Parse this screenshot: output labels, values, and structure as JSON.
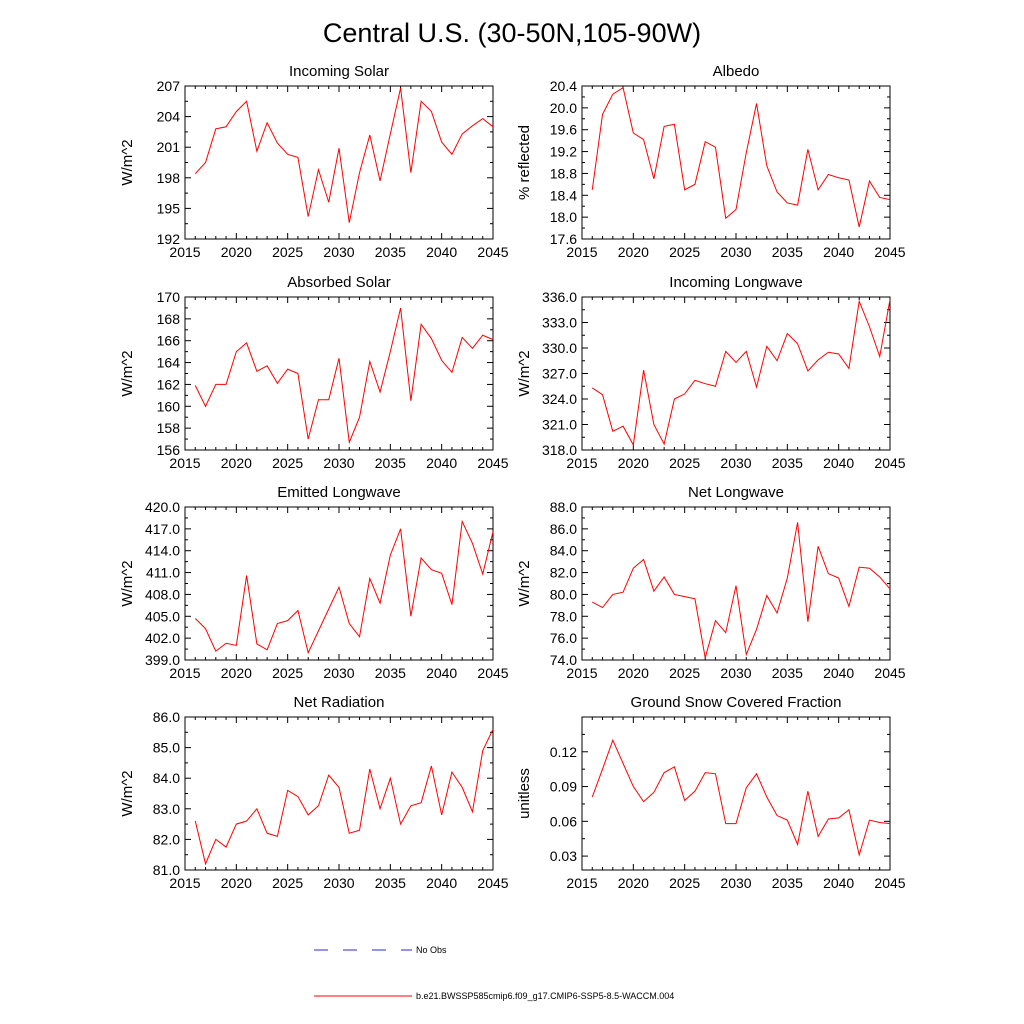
{
  "figure_title": "Central U.S. (30-50N,105-90W)",
  "legend": [
    {
      "label": "No Obs",
      "color": "#2a2ad0",
      "style": "dashed"
    },
    {
      "label": "b.e21.BWSSP585cmip6.f09_g17.CMIP6-SSP5-8.5-WACCM.004",
      "color": "#ff0000",
      "style": "solid"
    }
  ],
  "chart_data": [
    {
      "type": "line",
      "title": "Incoming Solar",
      "xlabel": "",
      "ylabel": "W/m^2",
      "xlim": [
        2015,
        2045
      ],
      "xticks": [
        2015,
        2020,
        2025,
        2030,
        2035,
        2040,
        2045
      ],
      "ylim": [
        192,
        207
      ],
      "yticks": [
        192,
        195,
        198,
        201,
        204,
        207
      ],
      "ytick_labels": [
        "192",
        "195",
        "198",
        "201",
        "204",
        "207"
      ],
      "series": [
        {
          "name": "b.e21.BWSSP585cmip6.f09_g17.CMIP6-SSP5-8.5-WACCM.004",
          "color": "#ff0000",
          "x": [
            2016,
            2017,
            2018,
            2019,
            2020,
            2021,
            2022,
            2023,
            2024,
            2025,
            2026,
            2027,
            2028,
            2029,
            2030,
            2031,
            2032,
            2033,
            2034,
            2035,
            2036,
            2037,
            2038,
            2039,
            2040,
            2041,
            2042,
            2043,
            2044,
            2045
          ],
          "y": [
            198.4,
            199.5,
            202.8,
            203.0,
            204.5,
            205.5,
            200.6,
            203.4,
            201.4,
            200.3,
            200.0,
            194.2,
            198.8,
            195.6,
            200.9,
            193.6,
            198.5,
            202.2,
            197.7,
            202.3,
            206.8,
            198.5,
            205.5,
            204.5,
            201.5,
            200.3,
            202.3,
            203.1,
            203.8,
            203.0
          ]
        }
      ]
    },
    {
      "type": "line",
      "title": "Albedo",
      "xlabel": "",
      "ylabel": "% reflected",
      "xlim": [
        2015,
        2045
      ],
      "xticks": [
        2015,
        2020,
        2025,
        2030,
        2035,
        2040,
        2045
      ],
      "ylim": [
        17.6,
        20.4
      ],
      "yticks": [
        17.6,
        18.0,
        18.4,
        18.8,
        19.2,
        19.6,
        20.0,
        20.4
      ],
      "ytick_labels": [
        "17.6",
        "18.0",
        "18.4",
        "18.8",
        "19.2",
        "19.6",
        "20.0",
        "20.4"
      ],
      "series": [
        {
          "name": "b.e21.BWSSP585cmip6.f09_g17.CMIP6-SSP5-8.5-WACCM.004",
          "color": "#ff0000",
          "x": [
            2016,
            2017,
            2018,
            2019,
            2020,
            2021,
            2022,
            2023,
            2024,
            2025,
            2026,
            2027,
            2028,
            2029,
            2030,
            2031,
            2032,
            2033,
            2034,
            2035,
            2036,
            2037,
            2038,
            2039,
            2040,
            2041,
            2042,
            2043,
            2044,
            2045
          ],
          "y": [
            18.5,
            19.88,
            20.25,
            20.37,
            19.54,
            19.42,
            18.7,
            19.66,
            19.7,
            18.5,
            18.6,
            19.38,
            19.28,
            17.98,
            18.14,
            19.18,
            20.08,
            18.94,
            18.46,
            18.26,
            18.22,
            19.24,
            18.5,
            18.78,
            18.72,
            18.68,
            17.82,
            18.66,
            18.36,
            18.32
          ]
        }
      ]
    },
    {
      "type": "line",
      "title": "Absorbed Solar",
      "xlabel": "",
      "ylabel": "W/m^2",
      "xlim": [
        2015,
        2045
      ],
      "xticks": [
        2015,
        2020,
        2025,
        2030,
        2035,
        2040,
        2045
      ],
      "ylim": [
        156,
        170
      ],
      "yticks": [
        156,
        158,
        160,
        162,
        164,
        166,
        168,
        170
      ],
      "ytick_labels": [
        "156",
        "158",
        "160",
        "162",
        "164",
        "166",
        "168",
        "170"
      ],
      "series": [
        {
          "name": "b.e21.BWSSP585cmip6.f09_g17.CMIP6-SSP5-8.5-WACCM.004",
          "color": "#ff0000",
          "x": [
            2016,
            2017,
            2018,
            2019,
            2020,
            2021,
            2022,
            2023,
            2024,
            2025,
            2026,
            2027,
            2028,
            2029,
            2030,
            2031,
            2032,
            2033,
            2034,
            2035,
            2036,
            2037,
            2038,
            2039,
            2040,
            2041,
            2042,
            2043,
            2044,
            2045
          ],
          "y": [
            161.9,
            160.0,
            162.0,
            162.0,
            165.0,
            165.8,
            163.2,
            163.7,
            162.1,
            163.4,
            163.0,
            157.0,
            160.6,
            160.6,
            164.4,
            156.7,
            159.0,
            164.1,
            161.3,
            165.0,
            169.0,
            160.5,
            167.5,
            166.2,
            164.2,
            163.1,
            166.3,
            165.3,
            166.5,
            166.1
          ]
        }
      ]
    },
    {
      "type": "line",
      "title": "Incoming Longwave",
      "xlabel": "",
      "ylabel": "W/m^2",
      "xlim": [
        2015,
        2045
      ],
      "xticks": [
        2015,
        2020,
        2025,
        2030,
        2035,
        2040,
        2045
      ],
      "ylim": [
        318.0,
        336.0
      ],
      "yticks": [
        318,
        321,
        324,
        327,
        330,
        333,
        336
      ],
      "ytick_labels": [
        "318.0",
        "321.0",
        "324.0",
        "327.0",
        "330.0",
        "333.0",
        "336.0"
      ],
      "series": [
        {
          "name": "b.e21.BWSSP585cmip6.f09_g17.CMIP6-SSP5-8.5-WACCM.004",
          "color": "#ff0000",
          "x": [
            2016,
            2017,
            2018,
            2019,
            2020,
            2021,
            2022,
            2023,
            2024,
            2025,
            2026,
            2027,
            2028,
            2029,
            2030,
            2031,
            2032,
            2033,
            2034,
            2035,
            2036,
            2037,
            2038,
            2039,
            2040,
            2041,
            2042,
            2043,
            2044,
            2045
          ],
          "y": [
            325.3,
            324.5,
            320.2,
            320.8,
            318.6,
            327.4,
            321.0,
            318.7,
            324.0,
            324.6,
            326.2,
            325.8,
            325.5,
            329.6,
            328.3,
            329.6,
            325.4,
            330.2,
            328.5,
            331.7,
            330.5,
            327.3,
            328.6,
            329.5,
            329.3,
            327.6,
            335.5,
            332.5,
            329.0,
            335.7
          ]
        }
      ]
    },
    {
      "type": "line",
      "title": "Emitted Longwave",
      "xlabel": "",
      "ylabel": "W/m^2",
      "xlim": [
        2015,
        2045
      ],
      "xticks": [
        2015,
        2020,
        2025,
        2030,
        2035,
        2040,
        2045
      ],
      "ylim": [
        399.0,
        420.0
      ],
      "yticks": [
        399,
        402,
        405,
        408,
        411,
        414,
        417,
        420
      ],
      "ytick_labels": [
        "399.0",
        "402.0",
        "405.0",
        "408.0",
        "411.0",
        "414.0",
        "417.0",
        "420.0"
      ],
      "series": [
        {
          "name": "b.e21.BWSSP585cmip6.f09_g17.CMIP6-SSP5-8.5-WACCM.004",
          "color": "#ff0000",
          "x": [
            2016,
            2017,
            2018,
            2019,
            2020,
            2021,
            2022,
            2023,
            2024,
            2025,
            2026,
            2027,
            2028,
            2029,
            2030,
            2031,
            2032,
            2033,
            2034,
            2035,
            2036,
            2037,
            2038,
            2039,
            2040,
            2041,
            2042,
            2043,
            2044,
            2045
          ],
          "y": [
            404.7,
            403.3,
            400.2,
            401.3,
            401.0,
            410.6,
            401.2,
            400.4,
            404.0,
            404.4,
            405.8,
            400.0,
            403.0,
            406.0,
            409.0,
            404.0,
            402.2,
            410.2,
            406.8,
            413.4,
            417.0,
            405.0,
            413.0,
            411.4,
            410.9,
            406.6,
            418.0,
            415.0,
            410.8,
            416.6
          ]
        }
      ]
    },
    {
      "type": "line",
      "title": "Net Longwave",
      "xlabel": "",
      "ylabel": "W/m^2",
      "xlim": [
        2015,
        2045
      ],
      "xticks": [
        2015,
        2020,
        2025,
        2030,
        2035,
        2040,
        2045
      ],
      "ylim": [
        74.0,
        88.0
      ],
      "yticks": [
        74,
        76,
        78,
        80,
        82,
        84,
        86,
        88
      ],
      "ytick_labels": [
        "74.0",
        "76.0",
        "78.0",
        "80.0",
        "82.0",
        "84.0",
        "86.0",
        "88.0"
      ],
      "series": [
        {
          "name": "b.e21.BWSSP585cmip6.f09_g17.CMIP6-SSP5-8.5-WACCM.004",
          "color": "#ff0000",
          "x": [
            2016,
            2017,
            2018,
            2019,
            2020,
            2021,
            2022,
            2023,
            2024,
            2025,
            2026,
            2027,
            2028,
            2029,
            2030,
            2031,
            2032,
            2033,
            2034,
            2035,
            2036,
            2037,
            2038,
            2039,
            2040,
            2041,
            2042,
            2043,
            2044,
            2045
          ],
          "y": [
            79.3,
            78.8,
            80.0,
            80.2,
            82.4,
            83.2,
            80.3,
            81.6,
            80.0,
            79.8,
            79.6,
            74.2,
            77.6,
            76.5,
            80.8,
            74.5,
            76.8,
            79.9,
            78.3,
            81.5,
            86.6,
            77.5,
            84.4,
            81.9,
            81.5,
            78.9,
            82.5,
            82.4,
            81.6,
            80.5
          ]
        }
      ]
    },
    {
      "type": "line",
      "title": "Net Radiation",
      "xlabel": "",
      "ylabel": "W/m^2",
      "xlim": [
        2015,
        2045
      ],
      "xticks": [
        2015,
        2020,
        2025,
        2030,
        2035,
        2040,
        2045
      ],
      "ylim": [
        81.0,
        86.0
      ],
      "yticks": [
        81,
        82,
        83,
        84,
        85,
        86
      ],
      "ytick_labels": [
        "81.0",
        "82.0",
        "83.0",
        "84.0",
        "85.0",
        "86.0"
      ],
      "series": [
        {
          "name": "b.e21.BWSSP585cmip6.f09_g17.CMIP6-SSP5-8.5-WACCM.004",
          "color": "#ff0000",
          "x": [
            2016,
            2017,
            2018,
            2019,
            2020,
            2021,
            2022,
            2023,
            2024,
            2025,
            2026,
            2027,
            2028,
            2029,
            2030,
            2031,
            2032,
            2033,
            2034,
            2035,
            2036,
            2037,
            2038,
            2039,
            2040,
            2041,
            2042,
            2043,
            2044,
            2045
          ],
          "y": [
            82.6,
            81.2,
            82.0,
            81.75,
            82.5,
            82.6,
            83.0,
            82.2,
            82.1,
            83.6,
            83.4,
            82.8,
            83.1,
            84.1,
            83.7,
            82.2,
            82.3,
            84.3,
            83.0,
            84.0,
            82.5,
            83.1,
            83.2,
            84.4,
            82.8,
            84.2,
            83.7,
            82.9,
            84.9,
            85.6
          ]
        }
      ]
    },
    {
      "type": "line",
      "title": "Ground Snow Covered Fraction",
      "xlabel": "",
      "ylabel": "unitless",
      "xlim": [
        2015,
        2045
      ],
      "xticks": [
        2015,
        2020,
        2025,
        2030,
        2035,
        2040,
        2045
      ],
      "ylim": [
        0.018,
        0.15
      ],
      "yticks": [
        0.03,
        0.06,
        0.09,
        0.12
      ],
      "ytick_labels": [
        "0.03",
        "0.06",
        "0.09",
        "0.12"
      ],
      "series": [
        {
          "name": "b.e21.BWSSP585cmip6.f09_g17.CMIP6-SSP5-8.5-WACCM.004",
          "color": "#ff0000",
          "x": [
            2016,
            2017,
            2018,
            2019,
            2020,
            2021,
            2022,
            2023,
            2024,
            2025,
            2026,
            2027,
            2028,
            2029,
            2030,
            2031,
            2032,
            2033,
            2034,
            2035,
            2036,
            2037,
            2038,
            2039,
            2040,
            2041,
            2042,
            2043,
            2044,
            2045
          ],
          "y": [
            0.081,
            0.105,
            0.13,
            0.11,
            0.09,
            0.077,
            0.085,
            0.102,
            0.107,
            0.078,
            0.086,
            0.102,
            0.101,
            0.058,
            0.058,
            0.089,
            0.101,
            0.081,
            0.065,
            0.061,
            0.04,
            0.086,
            0.047,
            0.062,
            0.063,
            0.07,
            0.031,
            0.061,
            0.059,
            0.058
          ]
        }
      ]
    }
  ]
}
